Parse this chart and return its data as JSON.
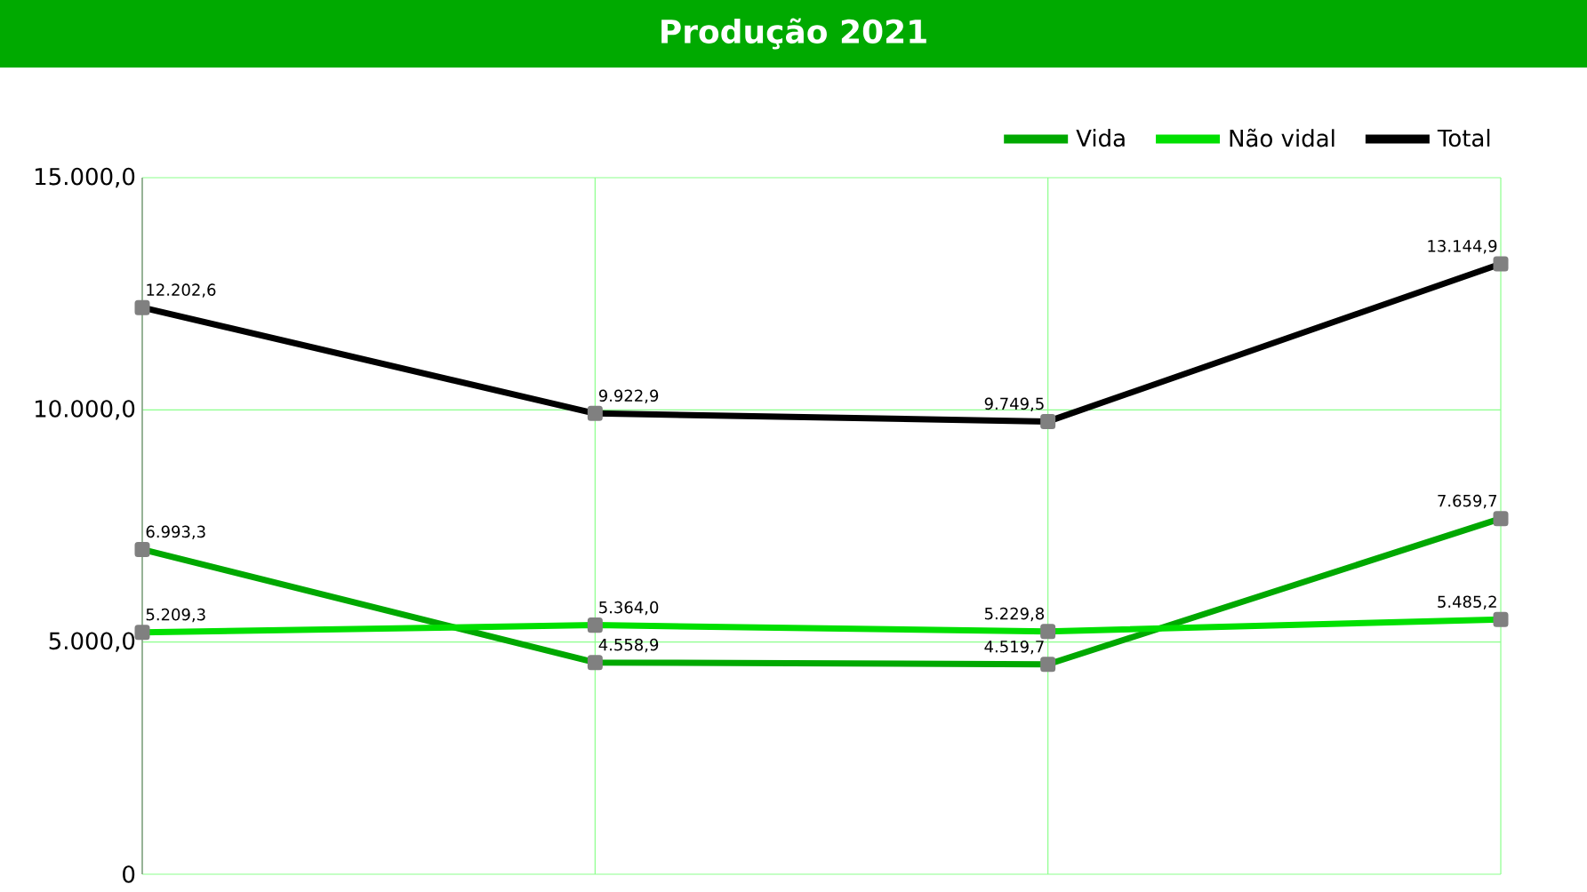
{
  "chart_data": {
    "type": "line",
    "title": "Produção 2021",
    "categories": [
      null,
      null,
      null,
      null
    ],
    "series": [
      {
        "name": "Vida",
        "color": "#00a800",
        "values": [
          6993.3,
          4558.9,
          4519.7,
          7659.7
        ],
        "value_labels": [
          "6.993,3",
          "4.558,9",
          "4.519,7",
          "7.659,7"
        ]
      },
      {
        "name": "Não vidal",
        "color": "#00e000",
        "values": [
          5209.3,
          5364.0,
          5229.8,
          5485.2
        ],
        "value_labels": [
          "5.209,3",
          "5.364,0",
          "5.229,8",
          "5.485,2"
        ]
      },
      {
        "name": "Total",
        "color": "#000000",
        "values": [
          12202.6,
          9922.9,
          9749.5,
          13144.9
        ],
        "value_labels": [
          "12.202,6",
          "9.922,9",
          "9.749,5",
          "13.144,9"
        ]
      }
    ],
    "ylim": [
      0,
      15000
    ],
    "yticks": [
      {
        "value": 0,
        "label": "0"
      },
      {
        "value": 5000,
        "label": "5.000,0"
      },
      {
        "value": 10000,
        "label": "10.000,0"
      },
      {
        "value": 15000,
        "label": "15.000,0"
      }
    ],
    "grid": true,
    "legend": "top right",
    "marker": "square",
    "line_style": "solid",
    "tick_labels": "y"
  }
}
